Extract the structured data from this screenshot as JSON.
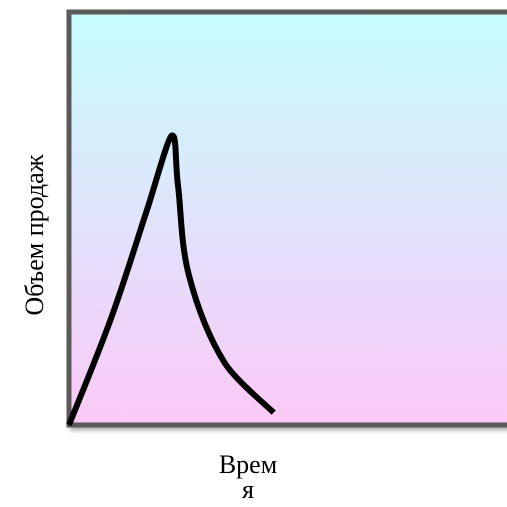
{
  "chart_data": {
    "type": "line",
    "title": "",
    "xlabel_lines": [
      "Врем",
      "я"
    ],
    "ylabel": "Объем продаж",
    "x_ticks": [],
    "y_ticks": [],
    "grid": false,
    "xlim": [
      0,
      10
    ],
    "ylim": [
      0,
      10
    ],
    "series": [
      {
        "values": [
          {
            "x": 0.0,
            "y": 0.0
          },
          {
            "x": 0.95,
            "y": 2.6
          },
          {
            "x": 1.75,
            "y": 5.2
          },
          {
            "x": 2.3,
            "y": 7.0
          },
          {
            "x": 2.45,
            "y": 5.8
          },
          {
            "x": 2.7,
            "y": 3.6
          },
          {
            "x": 3.5,
            "y": 1.5
          },
          {
            "x": 4.6,
            "y": 0.3
          }
        ]
      }
    ],
    "colors": {
      "line": "#000000",
      "frame": "#5a5a5a",
      "background_top": "#c6fdfd",
      "background_bottom": "#fbc9f7"
    }
  }
}
